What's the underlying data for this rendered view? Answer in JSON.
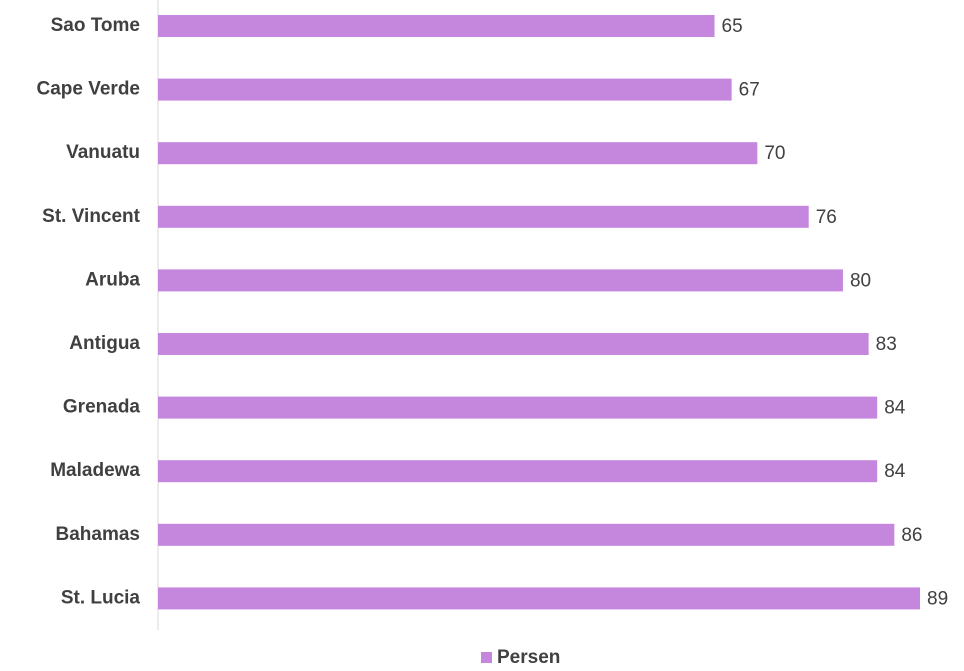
{
  "chart_data": {
    "type": "bar",
    "orientation": "horizontal",
    "categories": [
      "Sao Tome",
      "Cape Verde",
      "Vanuatu",
      "St. Vincent",
      "Aruba",
      "Antigua",
      "Grenada",
      "Maladewa",
      "Bahamas",
      "St. Lucia"
    ],
    "series": [
      {
        "name": "Persen",
        "color": "#c586de",
        "values": [
          65,
          67,
          70,
          76,
          80,
          83,
          84,
          84,
          86,
          89
        ]
      }
    ],
    "legend": "bottom"
  }
}
